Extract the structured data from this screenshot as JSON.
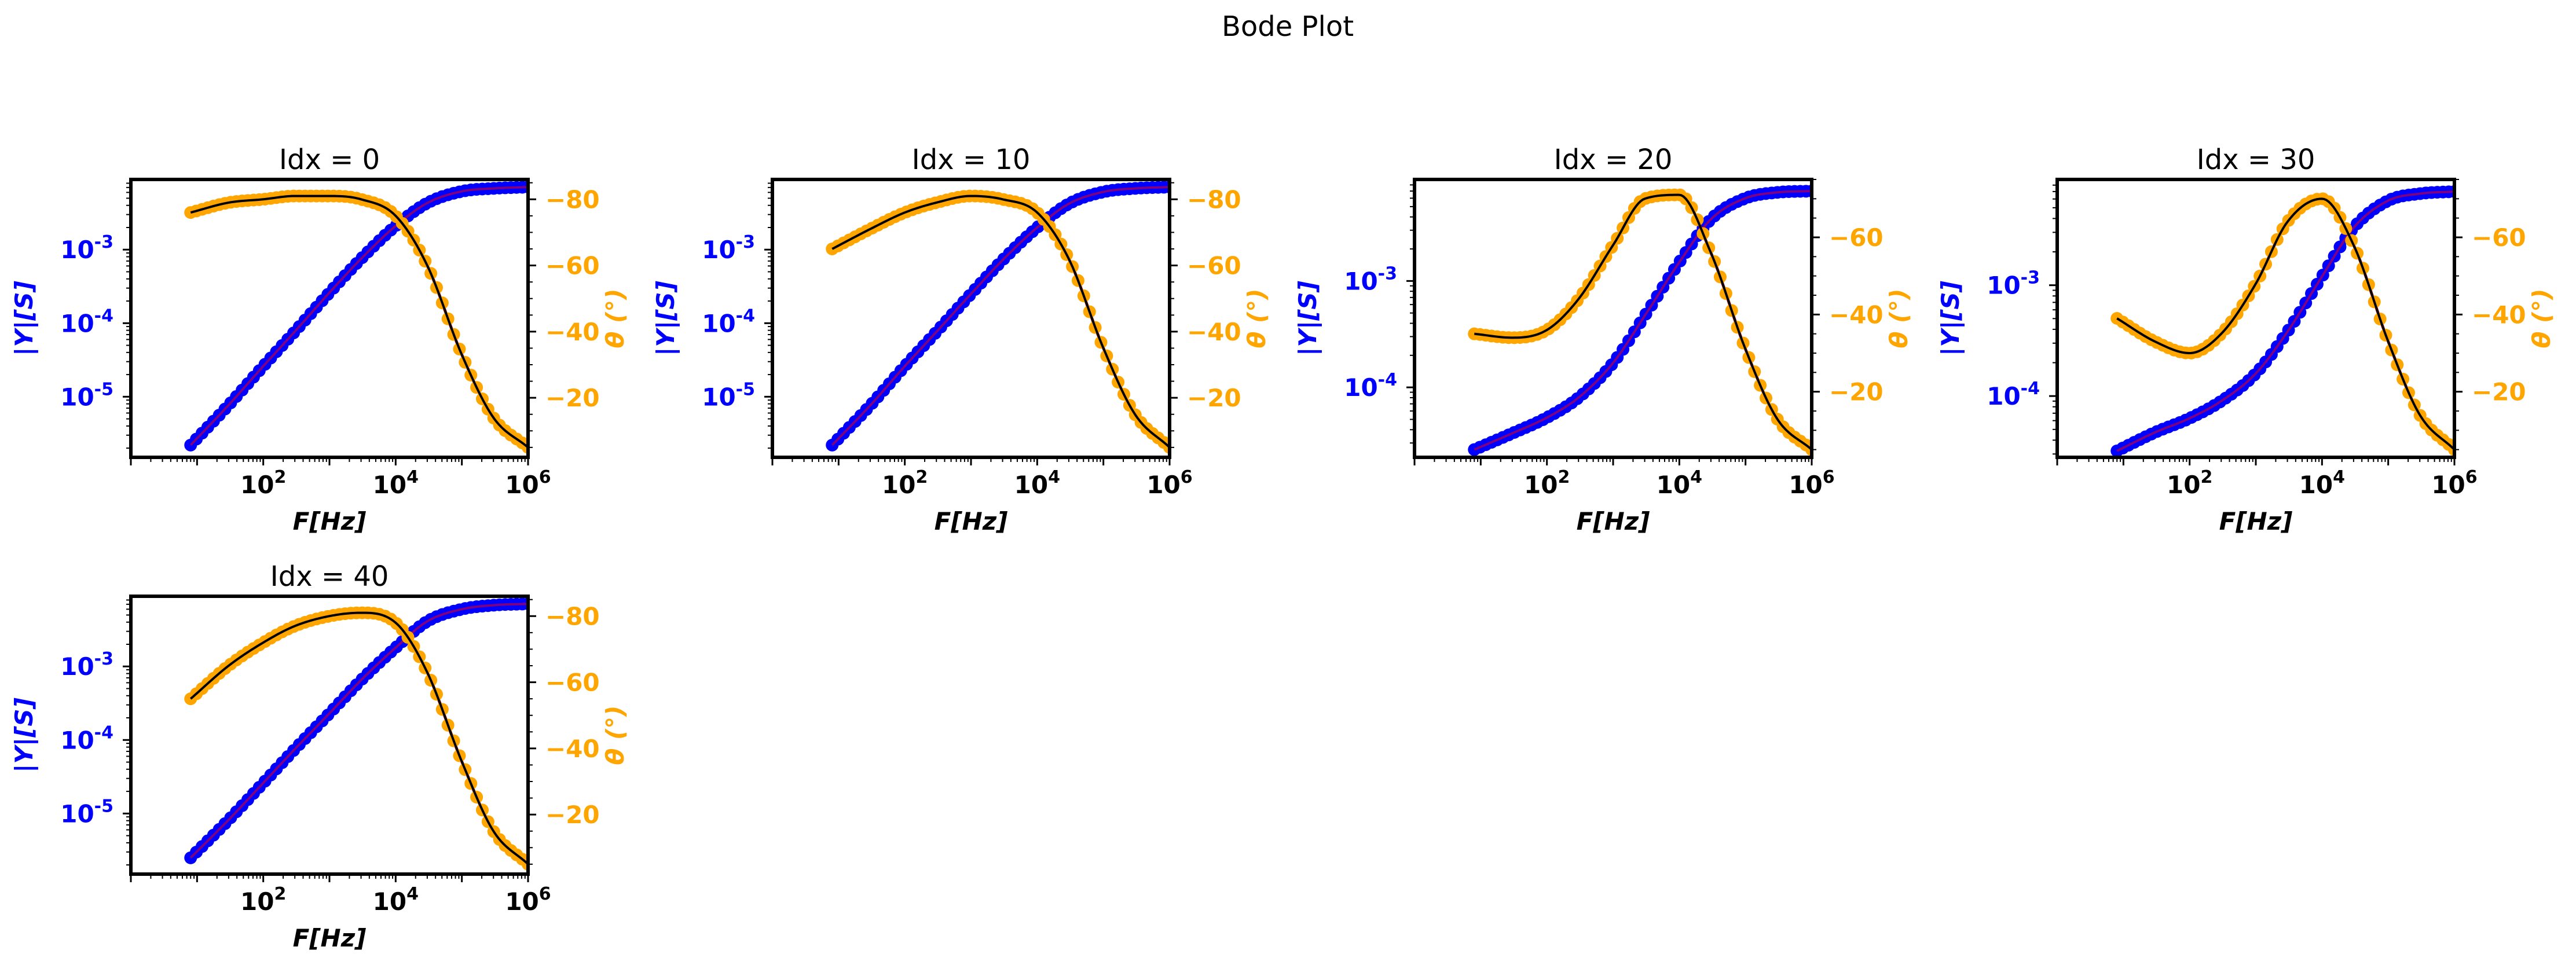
{
  "figure": {
    "suptitle": "Bode Plot"
  },
  "colors": {
    "magnitude_points": "#0000ff",
    "magnitude_fit": "#800080",
    "phase_points": "#ffa500",
    "phase_fit": "#000000",
    "connector_line": "#ff0000",
    "frame": "#000000"
  },
  "chart_data": [
    {
      "type": "line",
      "title": "Idx = 0",
      "xlabel": "F[Hz]",
      "ylabel_left": "|Y|[S]",
      "ylabel_right": "θ (°)",
      "xscale": "log",
      "xlim": [
        1,
        1000000
      ],
      "yscale_left": "log",
      "ylim_left": [
        1.5e-06,
        0.009
      ],
      "ylim_right": [
        -86,
        -2
      ],
      "right_axis_inverted": true,
      "xticks": [
        "10^2",
        "10^4",
        "10^6"
      ],
      "yticks_left": [
        "10^-5",
        "10^-4",
        "10^-3"
      ],
      "yticks_right": [
        "-80",
        "-60",
        "-40",
        "-20"
      ],
      "series": [
        {
          "name": "|Y|",
          "axis": "left",
          "markers": true,
          "x": [
            8,
            30,
            100,
            300,
            1000,
            3000,
            10000,
            30000,
            100000,
            300000,
            1000000
          ],
          "y": [
            2.2e-06,
            7.7e-06,
            2.6e-05,
            7.7e-05,
            0.00026,
            0.00075,
            0.0021,
            0.0043,
            0.0062,
            0.0068,
            0.0071
          ]
        },
        {
          "name": "θ",
          "axis": "right",
          "markers": true,
          "x": [
            8,
            30,
            100,
            300,
            1000,
            3000,
            10000,
            30000,
            100000,
            300000,
            1000000
          ],
          "y": [
            -76,
            -79,
            -80,
            -81,
            -81,
            -80,
            -75,
            -60,
            -33,
            -14,
            -5
          ]
        }
      ]
    },
    {
      "type": "line",
      "title": "Idx = 10",
      "xlabel": "F[Hz]",
      "ylabel_left": "|Y|[S]",
      "ylabel_right": "θ (°)",
      "xscale": "log",
      "xlim": [
        1,
        1000000
      ],
      "yscale_left": "log",
      "ylim_left": [
        1.5e-06,
        0.009
      ],
      "ylim_right": [
        -86,
        -2
      ],
      "right_axis_inverted": true,
      "xticks": [
        "10^2",
        "10^4",
        "10^6"
      ],
      "yticks_left": [
        "10^-5",
        "10^-4",
        "10^-3"
      ],
      "yticks_right": [
        "-80",
        "-60",
        "-40",
        "-20"
      ],
      "series": [
        {
          "name": "|Y|",
          "axis": "left",
          "markers": true,
          "x": [
            8,
            30,
            100,
            300,
            1000,
            3000,
            10000,
            30000,
            100000,
            300000,
            1000000
          ],
          "y": [
            2.2e-06,
            7.6e-06,
            2.6e-05,
            7.6e-05,
            0.00025,
            0.00072,
            0.002,
            0.0042,
            0.0061,
            0.0068,
            0.0071
          ]
        },
        {
          "name": "θ",
          "axis": "right",
          "markers": true,
          "x": [
            8,
            30,
            100,
            300,
            1000,
            3000,
            10000,
            30000,
            100000,
            300000,
            1000000
          ],
          "y": [
            -65,
            -71,
            -76,
            -79,
            -81,
            -80,
            -76,
            -62,
            -35,
            -15,
            -5
          ]
        }
      ]
    },
    {
      "type": "line",
      "title": "Idx = 20",
      "xlabel": "F[Hz]",
      "ylabel_left": "|Y|[S]",
      "ylabel_right": "θ (°)",
      "xscale": "log",
      "xlim": [
        1,
        1000000
      ],
      "yscale_left": "log",
      "ylim_left": [
        2.2e-05,
        0.009
      ],
      "ylim_right": [
        -75,
        -3
      ],
      "right_axis_inverted": true,
      "xticks": [
        "10^2",
        "10^4",
        "10^6"
      ],
      "yticks_left": [
        "10^-4",
        "10^-3"
      ],
      "yticks_right": [
        "-60",
        "-40",
        "-20"
      ],
      "series": [
        {
          "name": "|Y|",
          "axis": "left",
          "markers": true,
          "x": [
            8,
            30,
            100,
            300,
            1000,
            3000,
            10000,
            30000,
            100000,
            300000,
            1000000
          ],
          "y": [
            2.6e-05,
            3.7e-05,
            5.2e-05,
            8e-05,
            0.00017,
            0.00047,
            0.0015,
            0.0038,
            0.006,
            0.0068,
            0.007
          ]
        },
        {
          "name": "θ",
          "axis": "right",
          "markers": true,
          "x": [
            8,
            30,
            100,
            300,
            1000,
            3000,
            10000,
            30000,
            100000,
            300000,
            1000000
          ],
          "y": [
            -35,
            -34,
            -36,
            -44,
            -58,
            -70,
            -71,
            -56,
            -31,
            -13,
            -5
          ]
        }
      ]
    },
    {
      "type": "line",
      "title": "Idx = 30",
      "xlabel": "F[Hz]",
      "ylabel_left": "|Y|[S]",
      "ylabel_right": "θ (°)",
      "xscale": "log",
      "xlim": [
        1,
        1000000
      ],
      "yscale_left": "log",
      "ylim_left": [
        2.8e-05,
        0.009
      ],
      "ylim_right": [
        -75,
        -3
      ],
      "right_axis_inverted": true,
      "xticks": [
        "10^2",
        "10^4",
        "10^6"
      ],
      "yticks_left": [
        "10^-4",
        "10^-3"
      ],
      "yticks_right": [
        "-60",
        "-40",
        "-20"
      ],
      "series": [
        {
          "name": "|Y|",
          "axis": "left",
          "markers": true,
          "x": [
            8,
            30,
            100,
            300,
            1000,
            3000,
            10000,
            30000,
            100000,
            300000,
            1000000
          ],
          "y": [
            3.2e-05,
            4.7e-05,
            6.3e-05,
            9e-05,
            0.00016,
            0.00038,
            0.0012,
            0.0033,
            0.0058,
            0.0067,
            0.007
          ]
        },
        {
          "name": "θ",
          "axis": "right",
          "markers": true,
          "x": [
            8,
            30,
            100,
            300,
            1000,
            3000,
            10000,
            30000,
            100000,
            300000,
            1000000
          ],
          "y": [
            -39,
            -33,
            -30,
            -35,
            -48,
            -64,
            -70,
            -58,
            -33,
            -14,
            -5
          ]
        }
      ]
    },
    {
      "type": "line",
      "title": "Idx = 40",
      "xlabel": "F[Hz]",
      "ylabel_left": "|Y|[S]",
      "ylabel_right": "θ (°)",
      "xscale": "log",
      "xlim": [
        1,
        1000000
      ],
      "yscale_left": "log",
      "ylim_left": [
        1.5e-06,
        0.009
      ],
      "ylim_right": [
        -86,
        -2
      ],
      "right_axis_inverted": true,
      "xticks": [
        "10^2",
        "10^4",
        "10^6"
      ],
      "yticks_left": [
        "10^-5",
        "10^-4",
        "10^-3"
      ],
      "yticks_right": [
        "-80",
        "-60",
        "-40",
        "-20"
      ],
      "series": [
        {
          "name": "|Y|",
          "axis": "left",
          "markers": true,
          "x": [
            8,
            30,
            100,
            300,
            1000,
            3000,
            10000,
            30000,
            100000,
            300000,
            1000000
          ],
          "y": [
            2.5e-06,
            8.2e-06,
            2.6e-05,
            7.5e-05,
            0.00023,
            0.00065,
            0.0018,
            0.0041,
            0.006,
            0.0068,
            0.0071
          ]
        },
        {
          "name": "θ",
          "axis": "right",
          "markers": true,
          "x": [
            8,
            30,
            100,
            300,
            1000,
            3000,
            10000,
            30000,
            100000,
            300000,
            1000000
          ],
          "y": [
            -55,
            -65,
            -72,
            -77,
            -80,
            -81,
            -78,
            -63,
            -36,
            -15,
            -5
          ]
        }
      ]
    }
  ]
}
